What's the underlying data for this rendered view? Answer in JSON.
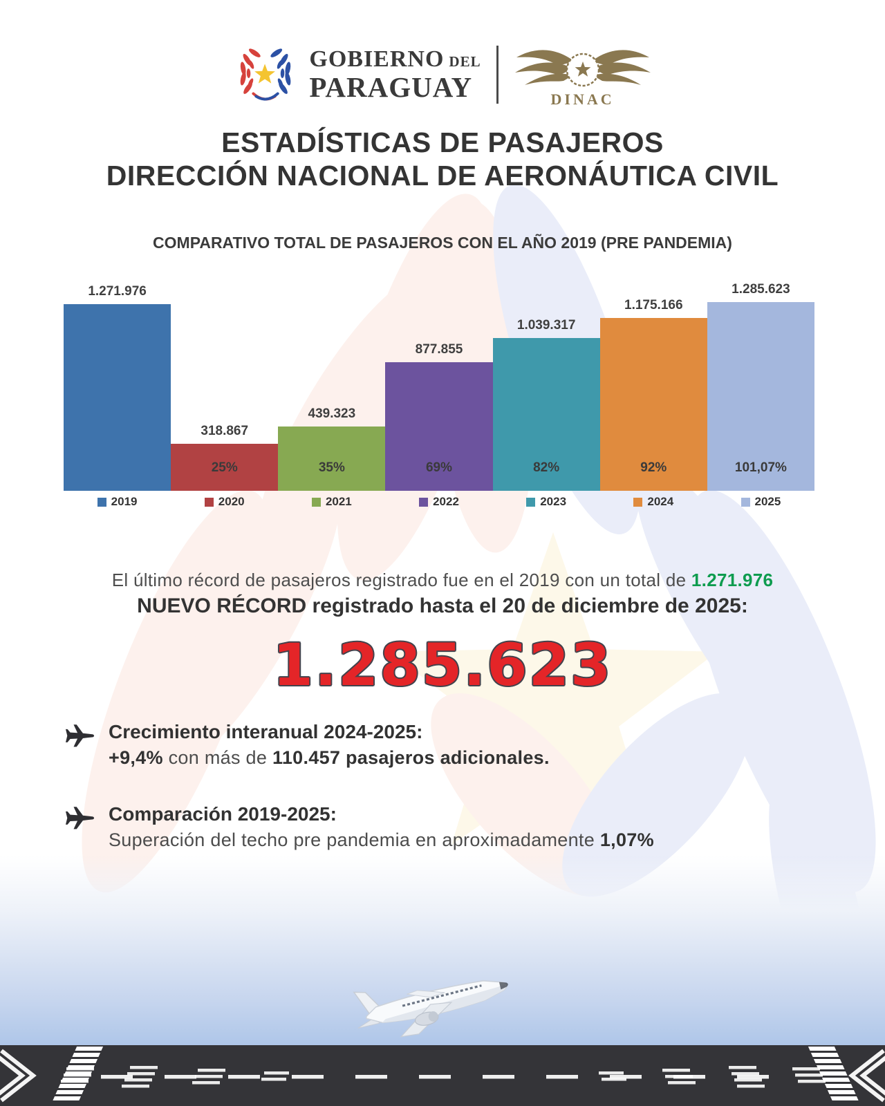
{
  "header": {
    "gobierno_logo": {
      "word1": "GOBIERNO",
      "word_small": "DEL",
      "word2": "PARAGUAY"
    },
    "dinac_label": "DINAC"
  },
  "title": {
    "line1": "ESTADÍSTICAS DE PASAJEROS",
    "line2": "DIRECCIÓN NACIONAL DE AERONÁUTICA CIVIL"
  },
  "chart_data": {
    "type": "bar",
    "title": "COMPARATIVO TOTAL DE PASAJEROS CON EL AÑO 2019 (PRE PANDEMIA)",
    "categories": [
      "2019",
      "2020",
      "2021",
      "2022",
      "2023",
      "2024",
      "2025"
    ],
    "values": [
      1271976,
      318867,
      439323,
      877855,
      1039317,
      1175166,
      1285623
    ],
    "value_labels": [
      "1.271.976",
      "318.867",
      "439.323",
      "877.855",
      "1.039.317",
      "1.175.166",
      "1.285.623"
    ],
    "pct_vs_2019_labels": [
      "",
      "25%",
      "35%",
      "69%",
      "82%",
      "92%",
      "101,07%"
    ],
    "colors": [
      "#3e73ac",
      "#b14243",
      "#87a952",
      "#6c539e",
      "#3f99ab",
      "#e08b3e",
      "#a4b7dd"
    ],
    "ylim": [
      0,
      1285623
    ],
    "grid": false,
    "legend_position": "bottom"
  },
  "record": {
    "line1_prefix": "El último récord de pasajeros registrado fue en el 2019 con un total de ",
    "line1_highlight": "1.271.976",
    "line2": "NUEVO RÉCORD registrado hasta el 20 de diciembre de 2025:",
    "big_number": "1.285.623"
  },
  "bullets": [
    {
      "heading": "Crecimiento interanual 2024-2025:",
      "segments": [
        {
          "text": "+9,4%",
          "bold": true
        },
        {
          "text": " con más de ",
          "bold": false
        },
        {
          "text": "110.457 pasajeros adicionales.",
          "bold": true
        }
      ]
    },
    {
      "heading": "Comparación 2019-2025:",
      "segments": [
        {
          "text": "Superación del techo pre pandemia en aproximadamente ",
          "bold": false
        },
        {
          "text": "1,07%",
          "bold": true
        }
      ]
    }
  ],
  "colors": {
    "accent_red": "#e42528",
    "accent_green": "#0e9c4f",
    "gold": "#8a7850",
    "runway": "#343438",
    "sky": "#9cbbe5"
  }
}
